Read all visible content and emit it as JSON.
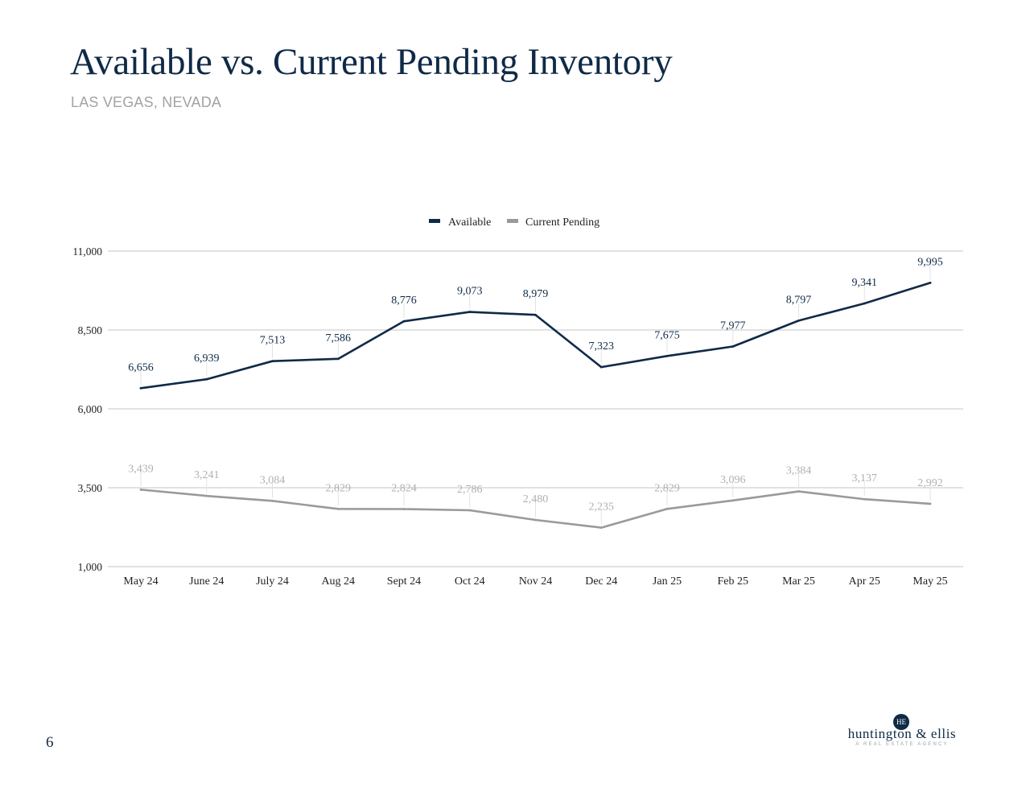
{
  "header": {
    "title": "Available vs. Current Pending Inventory",
    "subtitle": "LAS VEGAS, NEVADA"
  },
  "footer": {
    "page_number": "6",
    "logo_mark": "HE",
    "logo_name": "huntington & ellis",
    "logo_tagline": "A REAL ESTATE AGENCY"
  },
  "colors": {
    "available": "#0f2a47",
    "pending": "#9a9a9a",
    "pending_label": "#b0b0b0",
    "grid": "#d0d0d0",
    "axis_text": "#222222"
  },
  "chart_data": {
    "type": "line",
    "title": "Available vs. Current Pending Inventory",
    "subtitle": "LAS VEGAS, NEVADA",
    "xlabel": "",
    "ylabel": "",
    "categories": [
      "May 24",
      "June 24",
      "July 24",
      "Aug 24",
      "Sept 24",
      "Oct 24",
      "Nov 24",
      "Dec 24",
      "Jan 25",
      "Feb 25",
      "Mar 25",
      "Apr 25",
      "May 25"
    ],
    "series": [
      {
        "name": "Available",
        "values": [
          6656,
          6939,
          7513,
          7586,
          8776,
          9073,
          8979,
          7323,
          7675,
          7977,
          8797,
          9341,
          9995
        ]
      },
      {
        "name": "Current Pending",
        "values": [
          3439,
          3241,
          3084,
          2829,
          2824,
          2786,
          2480,
          2235,
          2829,
          3096,
          3384,
          3137,
          2992
        ]
      }
    ],
    "ylim": [
      1000,
      11000
    ],
    "yticks": [
      1000,
      3500,
      6000,
      8500,
      11000
    ],
    "grid": true,
    "legend_position": "top-center"
  }
}
